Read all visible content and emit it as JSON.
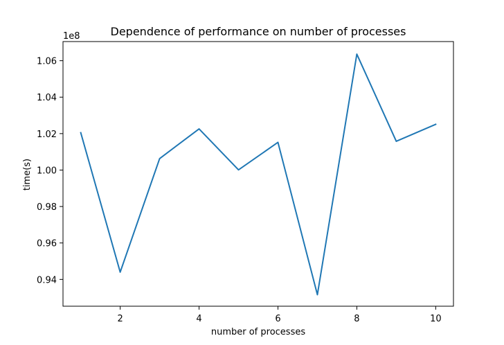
{
  "chart_data": {
    "type": "line",
    "title": "Dependence of performance on number of processes",
    "xlabel": "number of processes",
    "ylabel": "time(s)",
    "y_offset_text": "1e8",
    "xlim": [
      0.55,
      10.45
    ],
    "ylim": [
      0.9253,
      1.0705
    ],
    "x_ticks": [
      2,
      4,
      6,
      8,
      10
    ],
    "x_tick_labels": [
      "2",
      "4",
      "6",
      "8",
      "10"
    ],
    "y_ticks": [
      0.94,
      0.96,
      0.98,
      1.0,
      1.02,
      1.04,
      1.06
    ],
    "y_tick_labels": [
      "0.94",
      "0.96",
      "0.98",
      "1.00",
      "1.02",
      "1.04",
      "1.06"
    ],
    "grid": false,
    "series": [
      {
        "color": "#1f77b4",
        "x": [
          1,
          2,
          3,
          4,
          5,
          6,
          7,
          8,
          9,
          10
        ],
        "y": [
          1.0205,
          0.944,
          1.0063,
          1.0226,
          1.0001,
          1.0152,
          0.9316,
          1.0636,
          1.0158,
          1.0251
        ]
      }
    ]
  }
}
